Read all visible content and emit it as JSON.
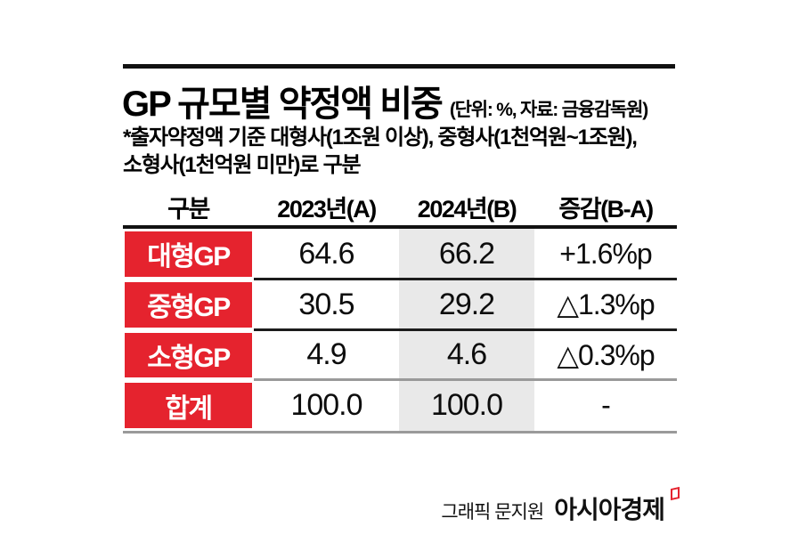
{
  "header": {
    "title": "GP 규모별 약정액 비중",
    "unit_note": "(단위: %, 자료: 금융감독원)",
    "subtitle_line1": "*출자약정액 기준 대형사(1조원 이상), 중형사(1천억원~1조원),",
    "subtitle_line2": "소형사(1천억원 미만)로 구분"
  },
  "table": {
    "columns": {
      "c1": "구분",
      "c2": "2023년(A)",
      "c3": "2024년(B)",
      "c4": "증감(B-A)"
    },
    "rows": [
      {
        "label": "대형GP",
        "y2023": "64.6",
        "y2024": "66.2",
        "change": "+1.6%p"
      },
      {
        "label": "중형GP",
        "y2023": "30.5",
        "y2024": "29.2",
        "change": "△1.3%p"
      },
      {
        "label": "소형GP",
        "y2023": "4.9",
        "y2024": "4.6",
        "change": "△0.3%p"
      },
      {
        "label": "합계",
        "y2023": "100.0",
        "y2024": "100.0",
        "change": "-"
      }
    ]
  },
  "footer": {
    "credit": "그래픽 문지원",
    "brand": "아시아경제"
  },
  "colors": {
    "accent_red": "#e5232e",
    "highlight_gray": "#e9e9e9",
    "line_gray": "#9a9a9a",
    "line_black": "#111111"
  },
  "chart_data": {
    "type": "table",
    "title": "GP 규모별 약정액 비중",
    "unit": "%",
    "source": "금융감독원",
    "columns": [
      "구분",
      "2023년(A)",
      "2024년(B)",
      "증감(B-A)"
    ],
    "rows": [
      [
        "대형GP",
        64.6,
        66.2,
        "+1.6%p"
      ],
      [
        "중형GP",
        30.5,
        29.2,
        "△1.3%p"
      ],
      [
        "소형GP",
        4.9,
        4.6,
        "△0.3%p"
      ],
      [
        "합계",
        100.0,
        100.0,
        "-"
      ]
    ]
  }
}
